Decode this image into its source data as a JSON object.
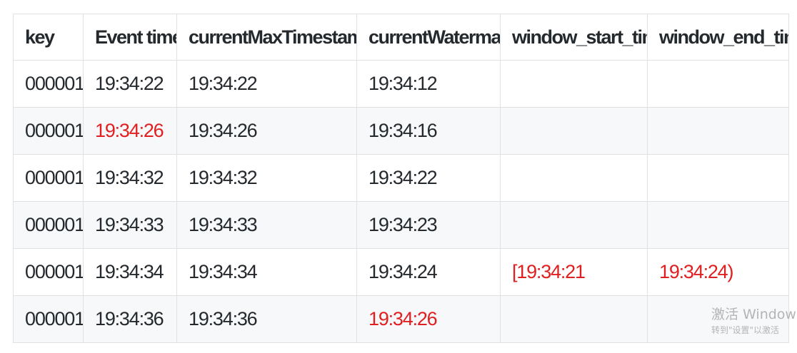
{
  "table": {
    "headers": [
      "key",
      "Event time",
      "currentMaxTimestamep",
      "currentWatermark",
      "window_start_time",
      "window_end_time"
    ],
    "rows": [
      [
        "000001",
        "19:34:22",
        "19:34:22",
        "19:34:12",
        "",
        ""
      ],
      [
        "000001",
        "19:34:26",
        "19:34:26",
        "19:34:16",
        "",
        ""
      ],
      [
        "000001",
        "19:34:32",
        "19:34:32",
        "19:34:22",
        "",
        ""
      ],
      [
        "000001",
        "19:34:33",
        "19:34:33",
        "19:34:23",
        "",
        ""
      ],
      [
        "000001",
        "19:34:34",
        "19:34:34",
        "19:34:24",
        "[19:34:21",
        "19:34:24)"
      ],
      [
        "000001",
        "19:34:36",
        "19:34:36",
        "19:34:26",
        "",
        ""
      ]
    ]
  },
  "colors": {
    "highlight": "#e02020",
    "header_border": "#dfe2e5",
    "stripe": "#f6f8fa"
  },
  "watermark": {
    "line1": "激活 Windows",
    "line2": "转到\"设置\"以激活"
  }
}
